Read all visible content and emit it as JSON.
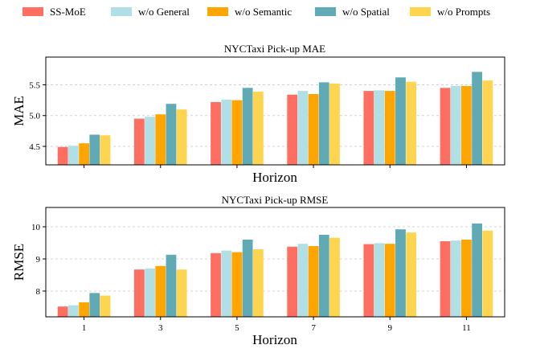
{
  "legend": [
    "SS-MoE",
    "w/o General",
    "w/o Semantic",
    "w/o Spatial",
    "w/o Prompts"
  ],
  "colors": [
    "#ff6f61",
    "#b0e0e6",
    "#ffa500",
    "#5faab5",
    "#ffd54f"
  ],
  "chart_data": [
    {
      "type": "bar",
      "title": "NYCTaxi Pick-up MAE",
      "xlabel": "Horizon",
      "ylabel": "MAE",
      "categories": [
        "1",
        "3",
        "5",
        "7",
        "9",
        "11"
      ],
      "show_category_labels": false,
      "ylim": [
        4.2,
        5.95
      ],
      "yticks": [
        4.5,
        5.0,
        5.5
      ],
      "ytick_labels": [
        "4.5",
        "5.0",
        "5.5"
      ],
      "grid": true,
      "series": [
        {
          "name": "SS-MoE",
          "values": [
            4.49,
            4.95,
            5.22,
            5.34,
            5.4,
            5.45
          ]
        },
        {
          "name": "w/o General",
          "values": [
            4.51,
            4.98,
            5.26,
            5.4,
            5.41,
            5.48
          ]
        },
        {
          "name": "w/o Semantic",
          "values": [
            4.55,
            5.02,
            5.25,
            5.35,
            5.4,
            5.48
          ]
        },
        {
          "name": "w/o Spatial",
          "values": [
            4.69,
            5.19,
            5.45,
            5.54,
            5.62,
            5.71
          ]
        },
        {
          "name": "w/o Prompts",
          "values": [
            4.68,
            5.1,
            5.39,
            5.52,
            5.55,
            5.57
          ]
        }
      ]
    },
    {
      "type": "bar",
      "title": "NYCTaxi Pick-up RMSE",
      "xlabel": "Horizon",
      "ylabel": "RMSE",
      "categories": [
        "1",
        "3",
        "5",
        "7",
        "9",
        "11"
      ],
      "show_category_labels": true,
      "ylim": [
        7.2,
        10.6
      ],
      "yticks": [
        8,
        9,
        10
      ],
      "ytick_labels": [
        "8",
        "9",
        "10"
      ],
      "grid": true,
      "series": [
        {
          "name": "SS-MoE",
          "values": [
            7.52,
            8.67,
            9.18,
            9.38,
            9.46,
            9.55
          ]
        },
        {
          "name": "w/o General",
          "values": [
            7.56,
            8.7,
            9.26,
            9.47,
            9.49,
            9.57
          ]
        },
        {
          "name": "w/o Semantic",
          "values": [
            7.65,
            8.78,
            9.21,
            9.4,
            9.47,
            9.6
          ]
        },
        {
          "name": "w/o Spatial",
          "values": [
            7.94,
            9.13,
            9.6,
            9.75,
            9.92,
            10.1
          ]
        },
        {
          "name": "w/o Prompts",
          "values": [
            7.86,
            8.67,
            9.3,
            9.66,
            9.82,
            9.88
          ]
        }
      ]
    }
  ]
}
